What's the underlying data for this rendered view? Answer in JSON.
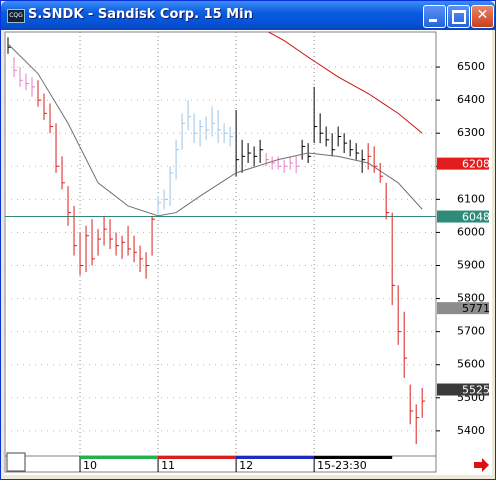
{
  "window": {
    "title": "S.SNDK - Sandisk Corp. 15 Min"
  },
  "chart_data": {
    "type": "ohlc",
    "xlim": [
      -0.5,
      71.3
    ],
    "ylim": [
      5327,
      6606
    ],
    "yticks": [
      5400,
      5500,
      5600,
      5700,
      5800,
      5900,
      6000,
      6100,
      6200,
      6300,
      6400,
      6500
    ],
    "xticks": [
      {
        "value": 12,
        "label": "10"
      },
      {
        "value": 25,
        "label": "11"
      },
      {
        "value": 38,
        "label": "12"
      },
      {
        "value": 51,
        "label": "15-23:30"
      }
    ],
    "sessions": [
      {
        "from": 12,
        "to": 25,
        "color": "#22b14c"
      },
      {
        "from": 25,
        "to": 38,
        "color": "#d81e1e"
      },
      {
        "from": 38,
        "to": 51,
        "color": "#1b2bc0"
      },
      {
        "from": 51,
        "to": 64,
        "color": "#000000"
      }
    ],
    "grid": true,
    "series": [
      {
        "color": "#000000",
        "x": [
          0
        ],
        "high": [
          6590
        ],
        "low": [
          6540
        ],
        "close": [
          6560
        ]
      },
      {
        "color": "#e27fc8",
        "x": [
          1,
          2,
          3,
          4
        ],
        "high": [
          6530,
          6500,
          6480,
          6470
        ],
        "low": [
          6470,
          6440,
          6430,
          6410
        ],
        "close": [
          6490,
          6460,
          6450,
          6440
        ]
      },
      {
        "color": "#d81e1e",
        "x": [
          5,
          6,
          7,
          8,
          9,
          10,
          11,
          12,
          13,
          14,
          15,
          16,
          17,
          18,
          19,
          20,
          21,
          22,
          23,
          24
        ],
        "high": [
          6460,
          6420,
          6390,
          6330,
          6230,
          6140,
          6080,
          6000,
          6020,
          6040,
          6010,
          6050,
          6040,
          6000,
          5990,
          6020,
          5990,
          5960,
          5940,
          6050
        ],
        "low": [
          6380,
          6340,
          6300,
          6180,
          6130,
          6020,
          5930,
          5870,
          5880,
          5900,
          5930,
          5960,
          5950,
          5930,
          5920,
          5930,
          5910,
          5880,
          5860,
          5930
        ],
        "close": [
          6400,
          6360,
          6320,
          6200,
          6150,
          6060,
          5960,
          5900,
          5990,
          5920,
          5980,
          6010,
          5980,
          5960,
          5970,
          5950,
          5940,
          5920,
          5900,
          6040
        ]
      },
      {
        "color": "#9cc4e6",
        "x": [
          25,
          26,
          27,
          28,
          29,
          30,
          31,
          32,
          33,
          34,
          35,
          36,
          37
        ],
        "high": [
          6110,
          6130,
          6200,
          6280,
          6360,
          6400,
          6360,
          6340,
          6350,
          6380,
          6370,
          6330,
          6320
        ],
        "low": [
          6050,
          6070,
          6080,
          6160,
          6250,
          6310,
          6270,
          6260,
          6280,
          6290,
          6270,
          6270,
          6260
        ],
        "close": [
          6090,
          6100,
          6180,
          6250,
          6330,
          6350,
          6300,
          6320,
          6310,
          6330,
          6310,
          6300,
          6290
        ]
      },
      {
        "color": "#000000",
        "x": [
          38,
          39,
          40,
          41,
          42
        ],
        "high": [
          6370,
          6280,
          6270,
          6260,
          6280
        ],
        "low": [
          6170,
          6180,
          6210,
          6200,
          6210
        ],
        "close": [
          6220,
          6230,
          6240,
          6230,
          6250
        ]
      },
      {
        "color": "#e27fc8",
        "x": [
          43,
          44,
          45,
          46,
          47,
          48
        ],
        "high": [
          6240,
          6230,
          6230,
          6220,
          6230,
          6230
        ],
        "low": [
          6200,
          6190,
          6190,
          6180,
          6190,
          6180
        ],
        "close": [
          6220,
          6210,
          6200,
          6200,
          6210,
          6200
        ]
      },
      {
        "color": "#000000",
        "x": [
          49,
          50,
          51,
          52,
          53,
          54,
          55,
          56,
          57,
          58,
          59
        ],
        "high": [
          6280,
          6270,
          6440,
          6360,
          6320,
          6300,
          6320,
          6300,
          6280,
          6270,
          6250
        ],
        "low": [
          6220,
          6210,
          6270,
          6270,
          6260,
          6230,
          6260,
          6240,
          6230,
          6220,
          6180
        ],
        "close": [
          6260,
          6230,
          6320,
          6300,
          6280,
          6250,
          6290,
          6270,
          6250,
          6240,
          6220
        ]
      },
      {
        "color": "#d81e1e",
        "x": [
          60,
          61,
          62,
          63,
          64,
          65,
          66,
          67,
          68,
          69
        ],
        "high": [
          6270,
          6260,
          6210,
          6150,
          6060,
          5840,
          5760,
          5540,
          5480,
          5530
        ],
        "low": [
          6190,
          6180,
          6150,
          6040,
          5780,
          5660,
          5560,
          5420,
          5360,
          5440
        ],
        "close": [
          6230,
          6200,
          6170,
          6060,
          5840,
          5700,
          5620,
          5460,
          5440,
          5490
        ]
      }
    ],
    "lines": [
      {
        "color": "#707070",
        "x": [
          0,
          5,
          10,
          15,
          20,
          25,
          28,
          32,
          38,
          45,
          50,
          55,
          60,
          65,
          69
        ],
        "values": [
          6570,
          6480,
          6330,
          6150,
          6080,
          6050,
          6060,
          6110,
          6180,
          6220,
          6240,
          6230,
          6210,
          6150,
          6070
        ]
      },
      {
        "color": "#c81414",
        "x": [
          43,
          46,
          50,
          55,
          60,
          65,
          69
        ],
        "values": [
          6610,
          6580,
          6530,
          6470,
          6420,
          6360,
          6300
        ]
      }
    ],
    "hline": {
      "value": 6048,
      "color": "#2e8b7a"
    },
    "markers": [
      {
        "value": 6208,
        "color": "#e31d1d",
        "text_color": "#ffffff"
      },
      {
        "value": 6048,
        "color": "#2e8b7a",
        "text_color": "#ffffff"
      },
      {
        "value": 5771,
        "color": "#8c8c8c",
        "text_color": "#000000"
      },
      {
        "value": 5525,
        "color": "#3a3a3a",
        "text_color": "#ffffff"
      }
    ]
  }
}
